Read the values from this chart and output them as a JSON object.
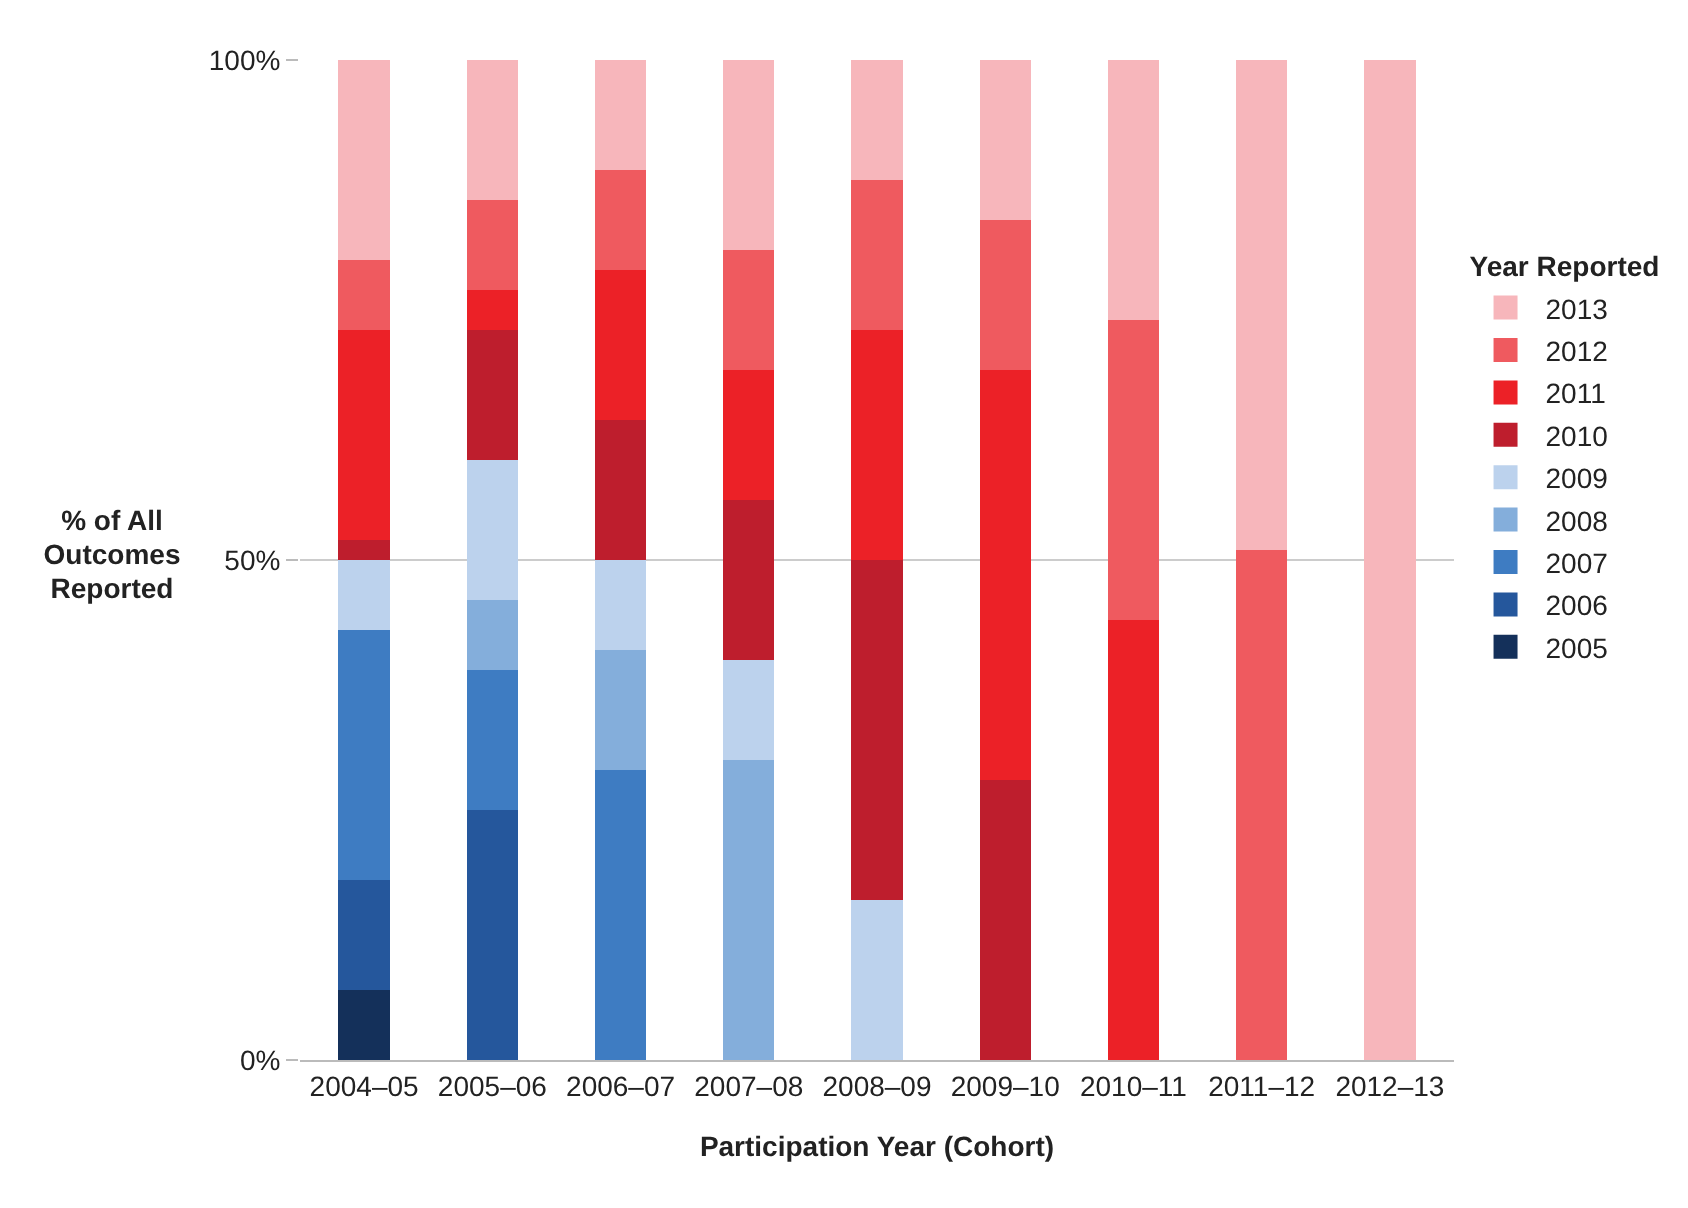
{
  "chart_data": {
    "type": "bar",
    "stacked": true,
    "xlabel": "Participation Year (Cohort)",
    "ylabel": "% of All Outcomes Reported",
    "legend_title": "Year Reported",
    "legend": "right",
    "categories": [
      "2004–05",
      "2005–06",
      "2006–07",
      "2007–08",
      "2008–09",
      "2009–10",
      "2010–11",
      "2011–12",
      "2012–13"
    ],
    "ylim": [
      0,
      100
    ],
    "yticks": [
      {
        "value": 0,
        "label": "0%"
      },
      {
        "value": 50,
        "label": "50%"
      },
      {
        "value": 100,
        "label": "100%"
      }
    ],
    "grid": "y",
    "series": [
      {
        "name": "2005",
        "color": "#14305a",
        "values": [
          7,
          0,
          0,
          0,
          0,
          0,
          0,
          0,
          0
        ]
      },
      {
        "name": "2006",
        "color": "#25579c",
        "values": [
          11,
          25,
          0,
          0,
          0,
          0,
          0,
          0,
          0
        ]
      },
      {
        "name": "2007",
        "color": "#3e7cc2",
        "values": [
          25,
          14,
          29,
          0,
          0,
          0,
          0,
          0,
          0
        ]
      },
      {
        "name": "2008",
        "color": "#84aedb",
        "values": [
          0,
          7,
          12,
          30,
          0,
          0,
          0,
          0,
          0
        ]
      },
      {
        "name": "2009",
        "color": "#bcd2ed",
        "values": [
          7,
          14,
          9,
          10,
          16,
          0,
          0,
          0,
          0
        ]
      },
      {
        "name": "2010",
        "color": "#be1e2d",
        "values": [
          2,
          13,
          14,
          16,
          34,
          28,
          0,
          0,
          0
        ]
      },
      {
        "name": "2011",
        "color": "#ec2127",
        "values": [
          21,
          4,
          15,
          13,
          23,
          41,
          44,
          0,
          0
        ]
      },
      {
        "name": "2012",
        "color": "#ef5a5f",
        "values": [
          7,
          9,
          10,
          12,
          15,
          15,
          30,
          51,
          0
        ]
      },
      {
        "name": "2013",
        "color": "#f7b6bb",
        "values": [
          20,
          14,
          11,
          19,
          12,
          16,
          26,
          49,
          100
        ]
      }
    ]
  }
}
